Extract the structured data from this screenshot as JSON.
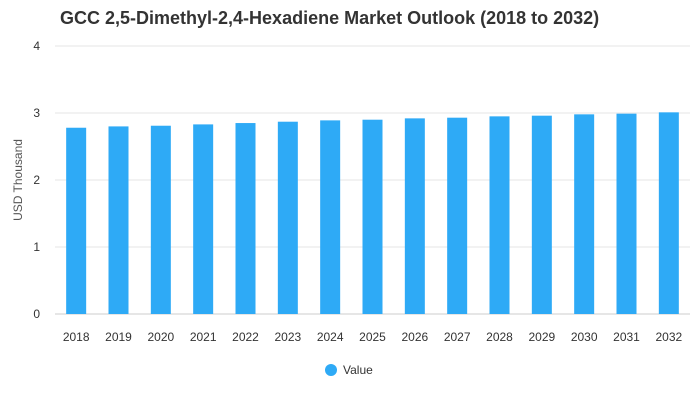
{
  "chart_data": {
    "type": "bar",
    "title": "GCC 2,5-Dimethyl-2,4-Hexadiene Market Outlook (2018 to 2032)",
    "xlabel": "",
    "ylabel": "USD Thousand",
    "categories": [
      "2018",
      "2019",
      "2020",
      "2021",
      "2022",
      "2023",
      "2024",
      "2025",
      "2026",
      "2027",
      "2028",
      "2029",
      "2030",
      "2031",
      "2032"
    ],
    "series": [
      {
        "name": "Value",
        "values": [
          2.78,
          2.8,
          2.81,
          2.83,
          2.85,
          2.87,
          2.89,
          2.9,
          2.92,
          2.93,
          2.95,
          2.96,
          2.98,
          2.99,
          3.01
        ],
        "color": "#2eaaf6"
      }
    ],
    "ylim": [
      0,
      4
    ],
    "yticks": [
      0,
      1,
      2,
      3,
      4
    ],
    "grid": true,
    "legend_position": "bottom-center"
  }
}
